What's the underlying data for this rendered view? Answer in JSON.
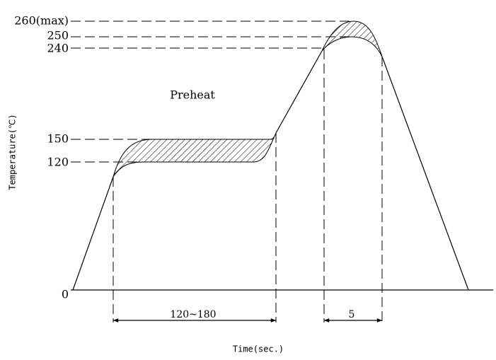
{
  "y_labels": [
    "260(max)",
    "250",
    "240",
    "150",
    "120",
    "0"
  ],
  "zone_label": "Preheat",
  "y_axis_title": "Temperature(℃)",
  "x_axis_title": "Time(sec.)",
  "dimensions": [
    "120~180",
    "5"
  ]
}
